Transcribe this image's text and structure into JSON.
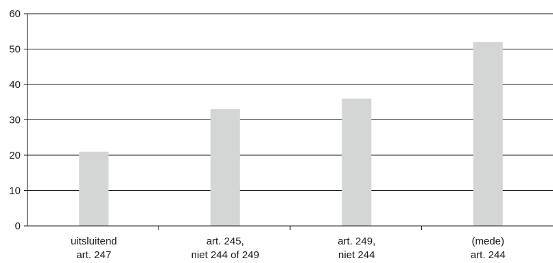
{
  "chart_data": {
    "type": "bar",
    "categories": [
      [
        "uitsluitend",
        "art. 247"
      ],
      [
        "art. 245,",
        "niet 244 of 249"
      ],
      [
        "art. 249,",
        "niet 244"
      ],
      [
        "(mede)",
        "art. 244"
      ]
    ],
    "values": [
      21,
      33,
      36,
      52
    ],
    "title": "",
    "xlabel": "",
    "ylabel": "",
    "ylim": [
      0,
      60
    ],
    "yticks": [
      0,
      10,
      20,
      30,
      40,
      50,
      60
    ],
    "grid": true,
    "legend": "none",
    "colors": {
      "bar": "#d4d6d6",
      "grid": "#1a1a1a",
      "axis": "#1a1a1a"
    }
  }
}
